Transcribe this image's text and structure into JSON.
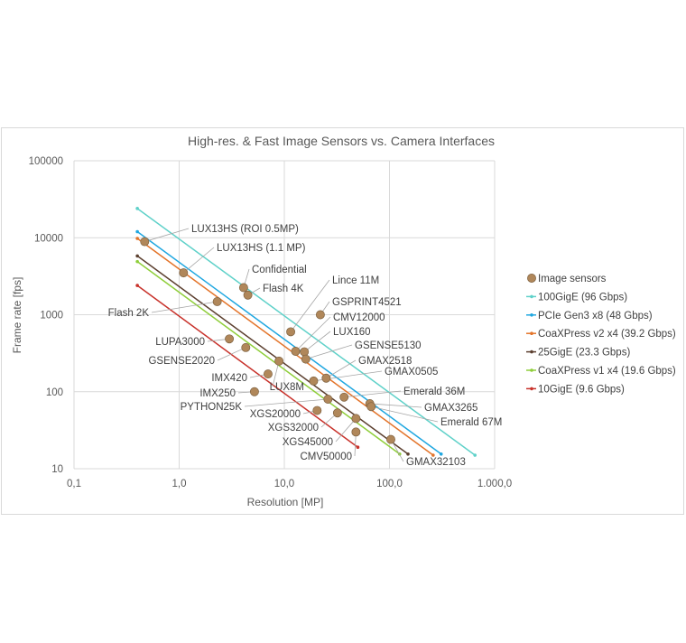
{
  "chart_data": {
    "type": "scatter",
    "title": "High-res. & Fast Image Sensors vs. Camera Interfaces",
    "xlabel": "Resolution [MP]",
    "ylabel": "Frame rate [fps]",
    "x_scale": "log",
    "y_scale": "log",
    "xlim": [
      0.1,
      1000
    ],
    "ylim": [
      10,
      100000
    ],
    "x_ticks": [
      0.1,
      1,
      10,
      100,
      1000
    ],
    "x_tick_labels": [
      "0,1",
      "1,0",
      "10,0",
      "100,0",
      "1.000,0"
    ],
    "y_ticks": [
      10,
      100,
      1000,
      10000,
      100000
    ],
    "y_tick_labels": [
      "10",
      "100",
      "1000",
      "10000",
      "100000"
    ],
    "grid": true,
    "legend_position": "right",
    "sensor_series": {
      "name": "Image sensors",
      "color": "#b0875a",
      "points": [
        {
          "label": "LUX13HS (ROI 0.5MP)",
          "x": 0.47,
          "y": 8900
        },
        {
          "label": "LUX13HS (1.1 MP)",
          "x": 1.1,
          "y": 3500
        },
        {
          "label": "Confidential",
          "x": 4.1,
          "y": 2250
        },
        {
          "label": "Flash 4K",
          "x": 4.5,
          "y": 1800
        },
        {
          "label": "Flash 2K",
          "x": 2.3,
          "y": 1480
        },
        {
          "label": "Lince 11M",
          "x": 11.5,
          "y": 600
        },
        {
          "label": "GSPRINT4521",
          "x": 22,
          "y": 1000
        },
        {
          "label": "LUPA3000",
          "x": 3.0,
          "y": 485
        },
        {
          "label": "GSENSE2020",
          "x": 4.3,
          "y": 375
        },
        {
          "label": "CMV12000",
          "x": 12.8,
          "y": 335
        },
        {
          "label": "LUX160",
          "x": 15.5,
          "y": 330
        },
        {
          "label": "GSENSE5130",
          "x": 16,
          "y": 265
        },
        {
          "label": "LUX8M",
          "x": 8.9,
          "y": 250
        },
        {
          "label": "IMX420",
          "x": 7.0,
          "y": 170
        },
        {
          "label": "GMAX2518",
          "x": 25,
          "y": 150
        },
        {
          "label": "GMAX0505",
          "x": 19,
          "y": 138
        },
        {
          "label": "IMX250",
          "x": 5.2,
          "y": 100
        },
        {
          "label": "Emerald 36M",
          "x": 37,
          "y": 85
        },
        {
          "label": "PYTHON25K",
          "x": 26,
          "y": 80
        },
        {
          "label": "GMAX3265",
          "x": 65,
          "y": 70
        },
        {
          "label": "Emerald 67M",
          "x": 67,
          "y": 64
        },
        {
          "label": "XGS20000",
          "x": 20.5,
          "y": 57
        },
        {
          "label": "XGS32000",
          "x": 32,
          "y": 53
        },
        {
          "label": "XGS45000",
          "x": 48,
          "y": 45
        },
        {
          "label": "CMV50000",
          "x": 48,
          "y": 30
        },
        {
          "label": "GMAX32103",
          "x": 103,
          "y": 24
        }
      ]
    },
    "series": [
      {
        "name": "100GigE (96 Gbps)",
        "color": "#5fd1c9",
        "x": [
          0.4,
          650
        ],
        "y": [
          24000,
          15
        ]
      },
      {
        "name": "PCIe Gen3 x8 (48 Gbps)",
        "color": "#1fa7e0",
        "x": [
          0.4,
          310
        ],
        "y": [
          12000,
          15.5
        ]
      },
      {
        "name": "CoaXPress v2 x4 (39.2 Gbps)",
        "color": "#e3742a",
        "x": [
          0.4,
          260
        ],
        "y": [
          9800,
          15
        ]
      },
      {
        "name": "25GigE (23.3 Gbps)",
        "color": "#5c4030",
        "x": [
          0.4,
          150
        ],
        "y": [
          5800,
          15.5
        ]
      },
      {
        "name": "CoaXPress v1 x4 (19.6 Gbps)",
        "color": "#8fce3a",
        "x": [
          0.4,
          125
        ],
        "y": [
          4900,
          15.5
        ]
      },
      {
        "name": "10GigE (9.6 Gbps)",
        "color": "#c8322b",
        "x": [
          0.4,
          50
        ],
        "y": [
          2400,
          19
        ]
      }
    ]
  }
}
